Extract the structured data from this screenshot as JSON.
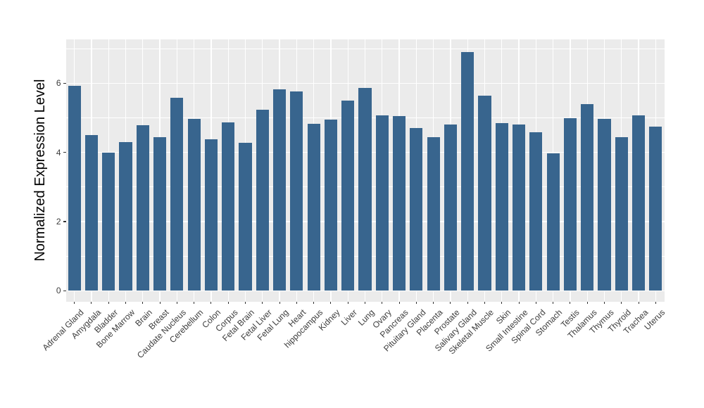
{
  "chart_data": {
    "type": "bar",
    "title": "",
    "xlabel": "",
    "ylabel": "Normalized Expression Level",
    "categories": [
      "Adrenal Gland",
      "Amygdala",
      "Bladder",
      "Bone Marrow",
      "Brain",
      "Breast",
      "Caudate Nucleus",
      "Cerebellum",
      "Colon",
      "Corpus",
      "Fetal Brain",
      "Fetal Liver",
      "Fetal Lung",
      "Heart",
      "hippocampus",
      "Kidney",
      "Liver",
      "Lung",
      "Ovary",
      "Pancreas",
      "Pituitary Gland",
      "Placenta",
      "Prostate",
      "Salivary Gland",
      "Skeletal Muscle",
      "Skin",
      "Small Intestine",
      "Spinal Cord",
      "Stomach",
      "Testis",
      "Thalamus",
      "Thymus",
      "Thyroid",
      "Trachea",
      "Uterus"
    ],
    "values": [
      5.92,
      4.5,
      4.0,
      4.3,
      4.78,
      4.44,
      5.58,
      4.97,
      4.39,
      4.87,
      4.27,
      5.24,
      5.83,
      5.76,
      4.83,
      4.96,
      5.5,
      5.87,
      5.08,
      5.05,
      4.71,
      4.44,
      4.8,
      6.9,
      5.65,
      4.84,
      4.8,
      4.58,
      3.98,
      5.0,
      5.4,
      4.98,
      4.44,
      5.07,
      4.75
    ],
    "ylim": [
      -0.31,
      7.27
    ],
    "yticks_major": [
      0,
      2,
      4,
      6
    ],
    "yticks_minor": [
      1,
      3,
      5,
      7
    ],
    "bar_width_frac": 0.75,
    "grid": true,
    "legend": "none",
    "colors": {
      "bar": "#38658E",
      "panel_bg": "#EBEBEB",
      "grid_major": "#FFFFFF",
      "grid_minor": "#FFFFFF",
      "tick_mark": "#333333",
      "tick_label": "#3C3C3C",
      "axis_title": "#000000",
      "figure_bg": "#FFFFFF"
    }
  }
}
